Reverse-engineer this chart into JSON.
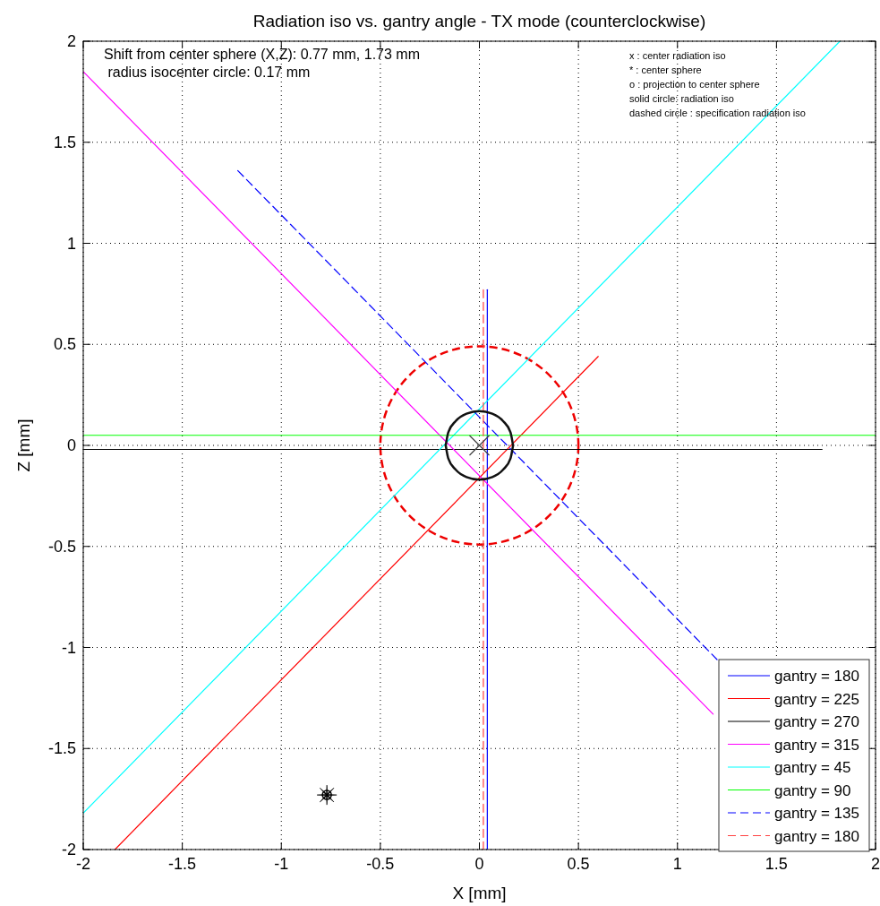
{
  "chart_data": {
    "type": "line",
    "title": "Radiation iso vs. gantry angle - TX mode (counterclockwise)",
    "xlabel": "X [mm]",
    "ylabel": "Z [mm]",
    "xlim": [
      -2,
      2
    ],
    "ylim": [
      -2,
      2
    ],
    "xticks": [
      -2,
      -1.5,
      -1,
      -0.5,
      0,
      0.5,
      1,
      1.5,
      2
    ],
    "yticks": [
      -2,
      -1.5,
      -1,
      -0.5,
      0,
      0.5,
      1,
      1.5,
      2
    ],
    "grid": true,
    "legend": "bottom right",
    "marker": "none",
    "series": [
      {
        "name": "gantry = 180",
        "color": "#0000ff",
        "line_style": "solid",
        "x": [
          0.04,
          0.04
        ],
        "values": [
          0.77,
          -2
        ]
      },
      {
        "name": "gantry = 225",
        "color": "#ff0000",
        "line_style": "solid",
        "x": [
          -1.84,
          0.6
        ],
        "values": [
          -2,
          0.44
        ]
      },
      {
        "name": "gantry = 270",
        "color": "#000000",
        "line_style": "solid",
        "x": [
          -2,
          1.73
        ],
        "values": [
          -0.02,
          -0.02
        ]
      },
      {
        "name": "gantry = 315",
        "color": "#ff00ff",
        "line_style": "solid",
        "x": [
          -2,
          1.18
        ],
        "values": [
          1.85,
          -1.33
        ]
      },
      {
        "name": "gantry = 45",
        "color": "#00ffff",
        "line_style": "solid",
        "x": [
          -2,
          1.82
        ],
        "values": [
          -1.82,
          2
        ]
      },
      {
        "name": "gantry = 90",
        "color": "#00ff00",
        "line_style": "solid",
        "x": [
          -2,
          2
        ],
        "values": [
          0.05,
          0.05
        ]
      },
      {
        "name": "gantry = 135",
        "color": "#0000ff",
        "line_style": "dashed",
        "x": [
          -1.22,
          1.2
        ],
        "values": [
          1.36,
          -1.06
        ]
      },
      {
        "name": "gantry = 180",
        "color": "#ff4040",
        "line_style": "dashed",
        "x": [
          0.02,
          0.02
        ],
        "values": [
          0.77,
          -2
        ]
      },
      {
        "color": "#111111",
        "line_style": "solid",
        "x": [
          -0.17,
          -0.157,
          -0.12,
          -0.065,
          0,
          0.065,
          0.12,
          0.157,
          0.17
        ],
        "values": [
          0,
          0.065,
          0.12,
          0.157,
          0.17,
          0.157,
          0.12,
          0.065,
          0
        ]
      },
      {
        "color": "#111111",
        "line_style": "solid",
        "x": [
          -0.17,
          -0.157,
          -0.12,
          -0.065,
          0,
          0.065,
          0.12,
          0.157,
          0.17
        ],
        "values": [
          0,
          -0.065,
          -0.12,
          -0.157,
          -0.17,
          -0.157,
          -0.12,
          -0.065,
          0
        ]
      },
      {
        "type": "scatter",
        "color": "#404040",
        "marker": "cross",
        "x": [
          0
        ],
        "values": [
          0
        ]
      },
      {
        "type": "scatter",
        "color": "#000000",
        "marker": "circle",
        "x": [
          -0.77
        ],
        "values": [
          -1.73
        ]
      },
      {
        "type": "scatter",
        "color": "#000000",
        "marker": "star",
        "x": [
          -0.77
        ],
        "values": [
          -1.73
        ]
      }
    ],
    "annotations": [
      "Shift from center sphere (X,Z): 0.77 mm, 1.73 mm",
      " radius isocenter circle: 0.17 mm",
      "x : center radiation iso",
      "* : center sphere",
      "o : projection to center sphere",
      "solid circle: radiation iso",
      "dashed circle : specification radiation iso"
    ]
  }
}
